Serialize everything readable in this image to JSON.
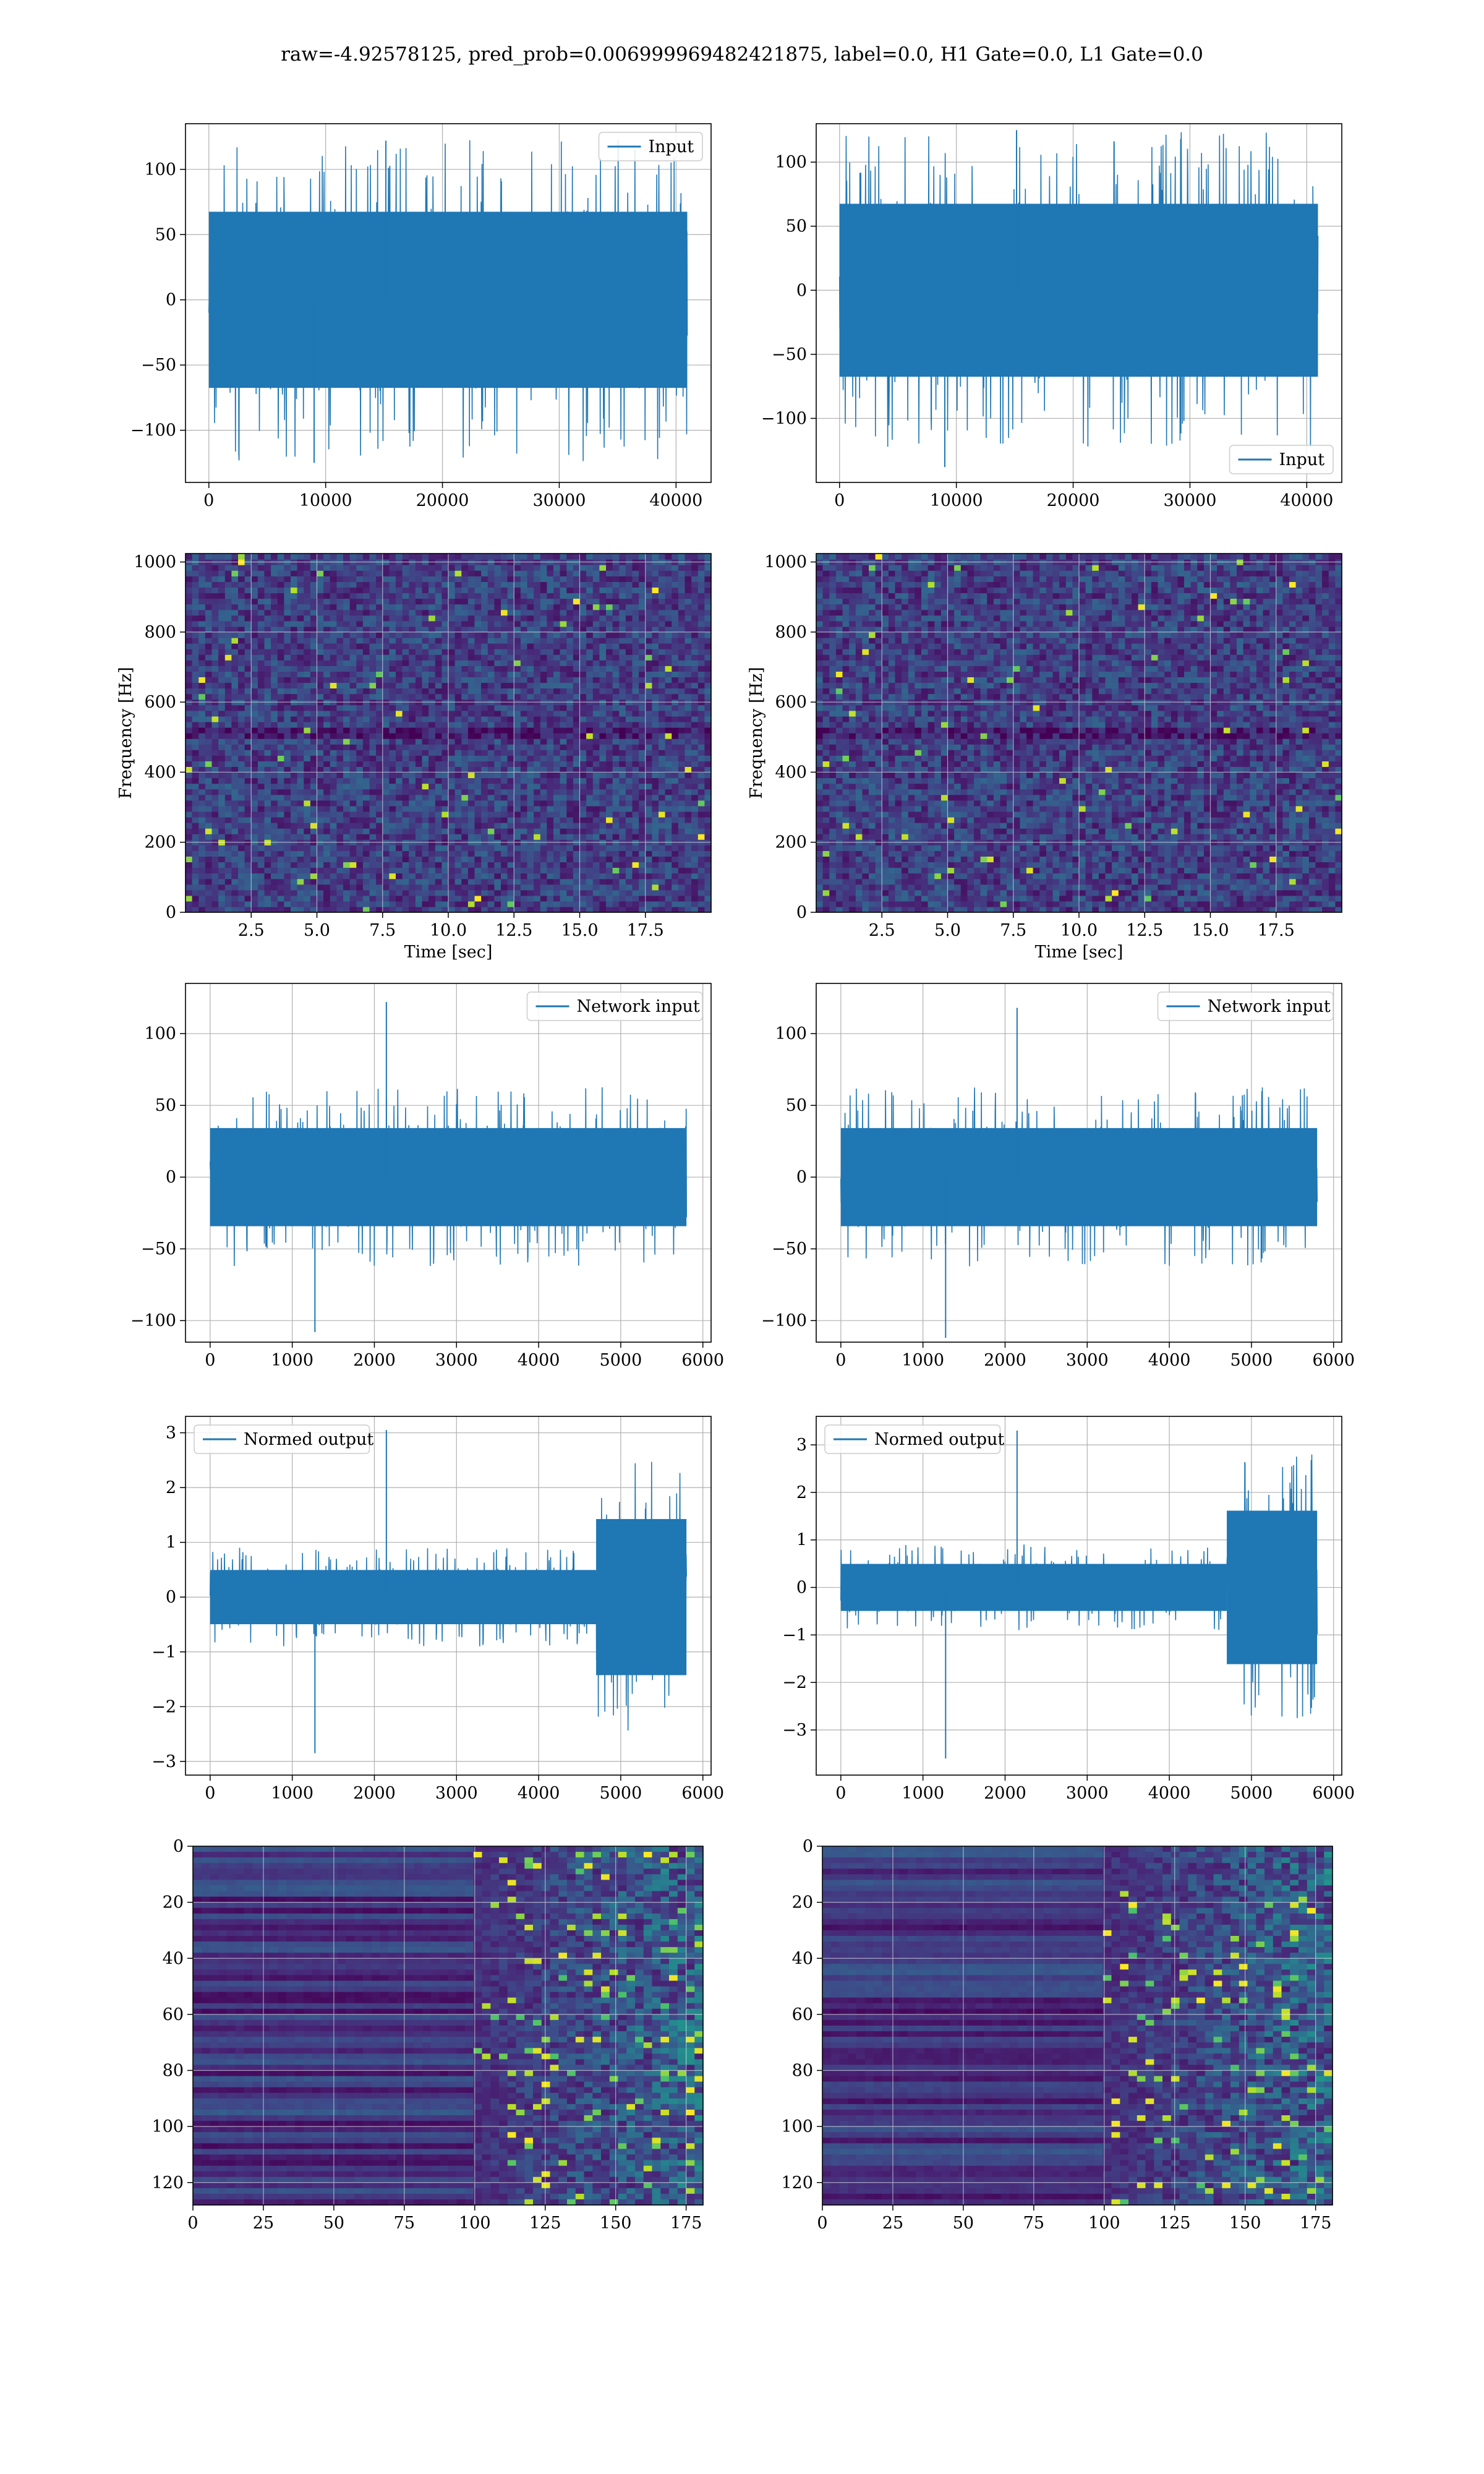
{
  "figure": {
    "title": "raw=-4.92578125, pred_prob=0.006999969482421875, label=0.0, H1 Gate=0.0, L1 Gate=0.0"
  },
  "colors": {
    "line": "#1f77b4",
    "grid": "#b0b0b0",
    "axes": "#000000",
    "spec_low": "#440154",
    "spec_mid": "#31688e",
    "spec_high": "#35b779",
    "spec_peak": "#fde725"
  },
  "chart_data": [
    {
      "id": "input-h1",
      "type": "line",
      "series": [
        {
          "name": "Input"
        }
      ],
      "legend": "upper right",
      "xlim": [
        -2000,
        43000
      ],
      "ylim": [
        -140,
        135
      ],
      "xticks": [
        0,
        10000,
        20000,
        30000,
        40000
      ],
      "xticklabels": [
        "0",
        "10000",
        "20000",
        "30000",
        "40000"
      ],
      "yticks": [
        -100,
        -50,
        0,
        50,
        100
      ],
      "yticklabels": [
        "−100",
        "−50",
        "0",
        "50",
        "100"
      ],
      "signal": {
        "n": 40960,
        "bulk_amplitude": 75,
        "min": -125,
        "max": 122
      },
      "xlabel": "",
      "ylabel": "",
      "grid": true
    },
    {
      "id": "input-l1",
      "type": "line",
      "series": [
        {
          "name": "Input"
        }
      ],
      "legend": "lower right",
      "xlim": [
        -2000,
        43000
      ],
      "ylim": [
        -150,
        130
      ],
      "xticks": [
        0,
        10000,
        20000,
        30000,
        40000
      ],
      "xticklabels": [
        "0",
        "10000",
        "20000",
        "30000",
        "40000"
      ],
      "yticks": [
        -100,
        -50,
        0,
        50,
        100
      ],
      "yticklabels": [
        "−100",
        "−50",
        "0",
        "50",
        "100"
      ],
      "signal": {
        "n": 40960,
        "bulk_amplitude": 75,
        "min": -138,
        "max": 125
      },
      "xlabel": "",
      "ylabel": "",
      "grid": true
    },
    {
      "id": "spectrogram-h1",
      "type": "heatmap",
      "xlim": [
        0,
        20
      ],
      "ylim": [
        0,
        1024
      ],
      "xticks": [
        2.5,
        5,
        7.5,
        10,
        12.5,
        15,
        17.5
      ],
      "xticklabels": [
        "2.5",
        "5.0",
        "7.5",
        "10.0",
        "12.5",
        "15.0",
        "17.5"
      ],
      "yticks": [
        0,
        200,
        400,
        600,
        800,
        1000
      ],
      "yticklabels": [
        "0",
        "200",
        "400",
        "600",
        "800",
        "1000"
      ],
      "xlabel": "Time [sec]",
      "ylabel": "Frequency [Hz]",
      "colormap": "viridis",
      "grid": true
    },
    {
      "id": "spectrogram-l1",
      "type": "heatmap",
      "xlim": [
        0,
        20
      ],
      "ylim": [
        0,
        1024
      ],
      "xticks": [
        2.5,
        5,
        7.5,
        10,
        12.5,
        15,
        17.5
      ],
      "xticklabels": [
        "2.5",
        "5.0",
        "7.5",
        "10.0",
        "12.5",
        "15.0",
        "17.5"
      ],
      "yticks": [
        0,
        200,
        400,
        600,
        800,
        1000
      ],
      "yticklabels": [
        "0",
        "200",
        "400",
        "600",
        "800",
        "1000"
      ],
      "xlabel": "Time [sec]",
      "ylabel": "Frequency [Hz]",
      "colormap": "viridis",
      "grid": true
    },
    {
      "id": "network-input-h1",
      "type": "line",
      "series": [
        {
          "name": "Network input"
        }
      ],
      "legend": "upper right",
      "xlim": [
        -300,
        6100
      ],
      "ylim": [
        -115,
        135
      ],
      "xticks": [
        0,
        1000,
        2000,
        3000,
        4000,
        5000,
        6000
      ],
      "xticklabels": [
        "0",
        "1000",
        "2000",
        "3000",
        "4000",
        "5000",
        "6000"
      ],
      "yticks": [
        -100,
        -50,
        0,
        50,
        100
      ],
      "yticklabels": [
        "−100",
        "−50",
        "0",
        "50",
        "100"
      ],
      "signal": {
        "n": 5800,
        "bulk_amplitude": 38,
        "min": -108,
        "max": 122
      },
      "xlabel": "",
      "ylabel": "",
      "grid": true
    },
    {
      "id": "network-input-l1",
      "type": "line",
      "series": [
        {
          "name": "Network input"
        }
      ],
      "legend": "upper right",
      "xlim": [
        -300,
        6100
      ],
      "ylim": [
        -115,
        135
      ],
      "xticks": [
        0,
        1000,
        2000,
        3000,
        4000,
        5000,
        6000
      ],
      "xticklabels": [
        "0",
        "1000",
        "2000",
        "3000",
        "4000",
        "5000",
        "6000"
      ],
      "yticks": [
        -100,
        -50,
        0,
        50,
        100
      ],
      "yticklabels": [
        "−100",
        "−50",
        "0",
        "50",
        "100"
      ],
      "signal": {
        "n": 5800,
        "bulk_amplitude": 38,
        "min": -112,
        "max": 118
      },
      "xlabel": "",
      "ylabel": "",
      "grid": true
    },
    {
      "id": "normed-output-h1",
      "type": "line",
      "series": [
        {
          "name": "Normed output"
        }
      ],
      "legend": "upper left",
      "xlim": [
        -300,
        6100
      ],
      "ylim": [
        -3.25,
        3.3
      ],
      "xticks": [
        0,
        1000,
        2000,
        3000,
        4000,
        5000,
        6000
      ],
      "xticklabels": [
        "0",
        "1000",
        "2000",
        "3000",
        "4000",
        "5000",
        "6000"
      ],
      "yticks": [
        -3,
        -2,
        -1,
        0,
        1,
        2,
        3
      ],
      "yticklabels": [
        "−3",
        "−2",
        "−1",
        "0",
        "1",
        "2",
        "3"
      ],
      "signal": {
        "n": 5800,
        "bulk_amplitude": 0.55,
        "burst_start": 4700,
        "burst_amplitude": 1.5,
        "min": -2.85,
        "max": 3.05
      },
      "xlabel": "",
      "ylabel": "",
      "grid": true
    },
    {
      "id": "normed-output-l1",
      "type": "line",
      "series": [
        {
          "name": "Normed output"
        }
      ],
      "legend": "upper left",
      "xlim": [
        -300,
        6100
      ],
      "ylim": [
        -3.95,
        3.6
      ],
      "xticks": [
        0,
        1000,
        2000,
        3000,
        4000,
        5000,
        6000
      ],
      "xticklabels": [
        "0",
        "1000",
        "2000",
        "3000",
        "4000",
        "5000",
        "6000"
      ],
      "yticks": [
        -3,
        -2,
        -1,
        0,
        1,
        2,
        3
      ],
      "yticklabels": [
        "−3",
        "−2",
        "−1",
        "0",
        "1",
        "2",
        "3"
      ],
      "signal": {
        "n": 5800,
        "bulk_amplitude": 0.55,
        "burst_start": 4700,
        "burst_amplitude": 1.7,
        "min": -3.6,
        "max": 3.3
      },
      "xlabel": "",
      "ylabel": "",
      "grid": true
    },
    {
      "id": "feature-map-h1",
      "type": "heatmap",
      "xlim": [
        0,
        181
      ],
      "ylim": [
        128,
        0
      ],
      "xticks": [
        0,
        25,
        50,
        75,
        100,
        125,
        150,
        175
      ],
      "xticklabels": [
        "0",
        "25",
        "50",
        "75",
        "100",
        "125",
        "150",
        "175"
      ],
      "yticks": [
        0,
        20,
        40,
        60,
        80,
        100,
        120
      ],
      "yticklabels": [
        "0",
        "20",
        "40",
        "60",
        "80",
        "100",
        "120"
      ],
      "activity_onset": 100,
      "colormap": "viridis",
      "grid": true
    },
    {
      "id": "feature-map-l1",
      "type": "heatmap",
      "xlim": [
        0,
        181
      ],
      "ylim": [
        128,
        0
      ],
      "xticks": [
        0,
        25,
        50,
        75,
        100,
        125,
        150,
        175
      ],
      "xticklabels": [
        "0",
        "25",
        "50",
        "75",
        "100",
        "125",
        "150",
        "175"
      ],
      "yticks": [
        0,
        20,
        40,
        60,
        80,
        100,
        120
      ],
      "yticklabels": [
        "0",
        "20",
        "40",
        "60",
        "80",
        "100",
        "120"
      ],
      "activity_onset": 100,
      "colormap": "viridis",
      "grid": true
    }
  ]
}
